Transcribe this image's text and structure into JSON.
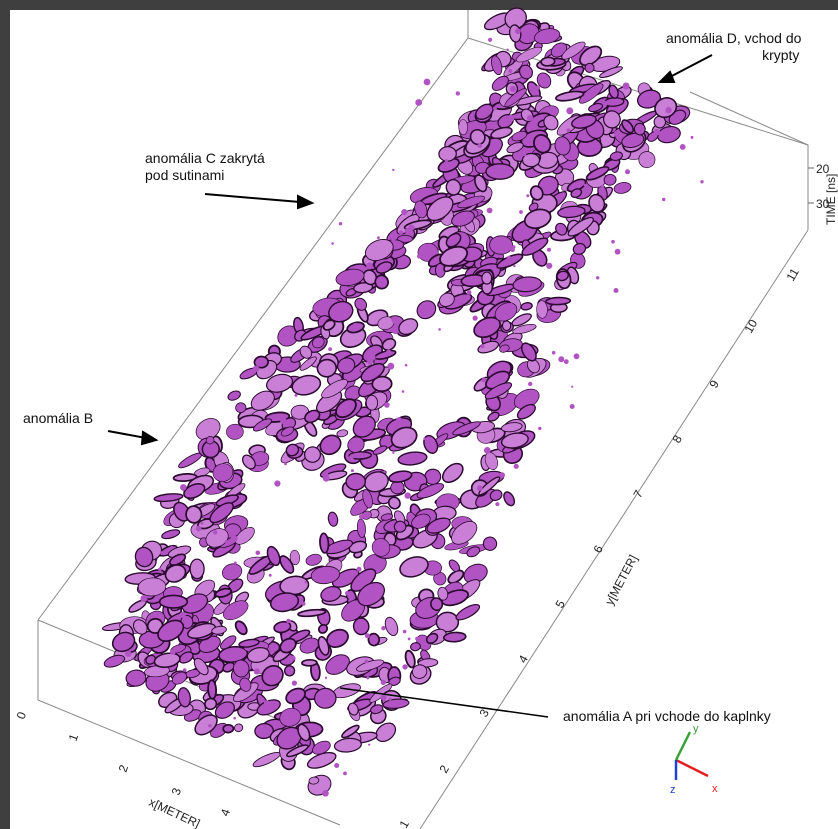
{
  "colors": {
    "volume_fill": "#b253c4",
    "volume_light": "#c97fd6",
    "volume_dark": "#2a0a2e",
    "box_line": "#7a7a7a",
    "frame": "#3f3f3f",
    "axis_x": "#e02020",
    "axis_y": "#3aa03a",
    "axis_z": "#2040d0"
  },
  "annotations": {
    "anomaly_d_line1": "anomália D, vchod do",
    "anomaly_d_line2": "krypty",
    "anomaly_c_line1": "anomália C zakrytá",
    "anomaly_c_line2": "pod sutinami",
    "anomaly_b": "anomália B",
    "anomaly_a": "anomália A pri vchode do kaplnky"
  },
  "axes": {
    "x_label": "x[METER]",
    "x_ticks": [
      "0",
      "1",
      "2",
      "3",
      "4"
    ],
    "y_label": "y[METER]",
    "y_ticks": [
      "1",
      "2",
      "3",
      "4",
      "5",
      "6",
      "7",
      "8",
      "9",
      "10",
      "11"
    ],
    "time_label": "TIME [ns]",
    "time_ticks": [
      "20",
      "30"
    ]
  },
  "orientation_gizmo": {
    "x": "x",
    "y": "y",
    "z": "z"
  }
}
